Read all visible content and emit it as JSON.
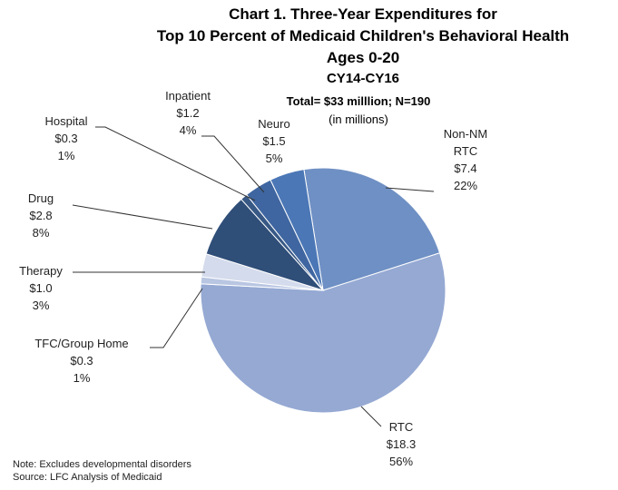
{
  "chart_data": {
    "type": "pie",
    "title": [
      "Chart 1. Three-Year Expenditures for",
      "Top 10 Percent of Medicaid Children's Behavioral Health",
      "Ages 0-20",
      "CY14-CY16"
    ],
    "subtitle": [
      "Total= $33 milllion; N=190",
      "(in millions)"
    ],
    "notes": [
      "Note: Excludes developmental disorders",
      "Source: LFC Analysis of Medicaid"
    ],
    "categories": [
      "Non-NM RTC",
      "RTC",
      "TFC/Group Home",
      "Therapy",
      "Drug",
      "Hospital",
      "Inpatient",
      "Neuro"
    ],
    "values": [
      7.4,
      18.3,
      0.3,
      1.0,
      2.8,
      0.3,
      1.2,
      1.5
    ],
    "value_labels": [
      "$7.4",
      "$18.3",
      "$0.3",
      "$1.0",
      "$2.8",
      "$0.3",
      "$1.2",
      "$1.5"
    ],
    "percents": [
      22,
      56,
      1,
      3,
      8,
      1,
      4,
      5
    ],
    "percent_labels": [
      "22%",
      "56%",
      "1%",
      "3%",
      "8%",
      "1%",
      "4%",
      "5%"
    ],
    "colors": [
      "#6f90c4",
      "#95a9d3",
      "#b9c6e2",
      "#d4dbec",
      "#2f4e78",
      "#385985",
      "#3f66a0",
      "#4b77b6"
    ]
  }
}
